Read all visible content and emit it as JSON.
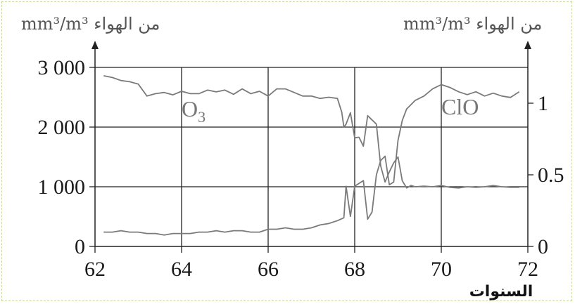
{
  "chart_data": {
    "type": "line",
    "xlabel": "السنوات",
    "x_ticks": [
      "62",
      "64",
      "66",
      "68",
      "70",
      "72"
    ],
    "xlim": [
      62,
      72
    ],
    "y_left": {
      "unit": "mm³/m³ من الهواء",
      "ticks": [
        "0",
        "1 000",
        "2 000",
        "3 000"
      ],
      "ylim": [
        0,
        3000
      ]
    },
    "y_right": {
      "unit": "mm³/m³ من الهواء",
      "ticks": [
        "0",
        "0.5",
        "1"
      ],
      "ylim": [
        0,
        1.25
      ]
    },
    "grid": true,
    "series": [
      {
        "name": "O3",
        "axis": "left",
        "color": "#7a7a7a",
        "x": [
          62.2,
          62.4,
          62.6,
          62.8,
          63.0,
          63.2,
          63.4,
          63.6,
          63.8,
          64.0,
          64.2,
          64.4,
          64.6,
          64.8,
          65.0,
          65.2,
          65.4,
          65.6,
          65.8,
          66.0,
          66.2,
          66.4,
          66.6,
          66.8,
          67.0,
          67.2,
          67.4,
          67.6,
          67.7,
          67.75,
          67.8,
          67.9,
          68.0,
          68.1,
          68.2,
          68.3,
          68.4,
          68.5,
          68.6,
          68.7,
          68.8,
          68.9,
          69.0,
          69.1,
          69.2,
          69.3,
          69.4,
          69.6,
          69.8,
          70.0,
          70.2,
          70.4,
          70.6,
          70.8,
          71.0,
          71.2,
          71.4,
          71.6,
          71.8
        ],
        "y": [
          2860,
          2830,
          2780,
          2760,
          2720,
          2520,
          2560,
          2580,
          2540,
          2600,
          2560,
          2560,
          2620,
          2590,
          2620,
          2550,
          2640,
          2560,
          2600,
          2520,
          2640,
          2640,
          2580,
          2520,
          2520,
          2480,
          2500,
          2480,
          2250,
          2000,
          2050,
          2240,
          1820,
          1830,
          1680,
          2190,
          2120,
          2050,
          1350,
          1080,
          1250,
          1400,
          1500,
          1100,
          980,
          1020,
          1000,
          1010,
          1000,
          1020,
          990,
          980,
          1000,
          990,
          1000,
          1020,
          1000,
          990,
          990
        ]
      },
      {
        "name": "ClO",
        "axis": "right",
        "color": "#7a7a7a",
        "x": [
          62.2,
          62.4,
          62.6,
          62.8,
          63.0,
          63.2,
          63.4,
          63.6,
          63.8,
          64.0,
          64.2,
          64.4,
          64.6,
          64.8,
          65.0,
          65.2,
          65.4,
          65.6,
          65.8,
          66.0,
          66.2,
          66.4,
          66.6,
          66.8,
          67.0,
          67.2,
          67.4,
          67.6,
          67.75,
          67.8,
          67.9,
          68.0,
          68.1,
          68.2,
          68.3,
          68.4,
          68.5,
          68.6,
          68.7,
          68.8,
          68.9,
          69.0,
          69.1,
          69.2,
          69.4,
          69.6,
          69.8,
          70.0,
          70.2,
          70.4,
          70.6,
          70.8,
          71.0,
          71.2,
          71.4,
          71.6,
          71.8
        ],
        "y": [
          0.1,
          0.1,
          0.11,
          0.1,
          0.1,
          0.09,
          0.09,
          0.08,
          0.09,
          0.09,
          0.09,
          0.1,
          0.1,
          0.11,
          0.1,
          0.11,
          0.11,
          0.1,
          0.1,
          0.12,
          0.12,
          0.13,
          0.12,
          0.12,
          0.13,
          0.15,
          0.16,
          0.18,
          0.2,
          0.42,
          0.21,
          0.42,
          0.44,
          0.46,
          0.19,
          0.24,
          0.5,
          0.6,
          0.63,
          0.43,
          0.45,
          0.74,
          0.88,
          0.96,
          1.02,
          1.05,
          1.1,
          1.13,
          1.11,
          1.08,
          1.06,
          1.08,
          1.05,
          1.07,
          1.05,
          1.04,
          1.08
        ]
      }
    ],
    "labels": [
      {
        "text": "O",
        "sub": "3"
      },
      {
        "text": "ClO"
      }
    ]
  }
}
